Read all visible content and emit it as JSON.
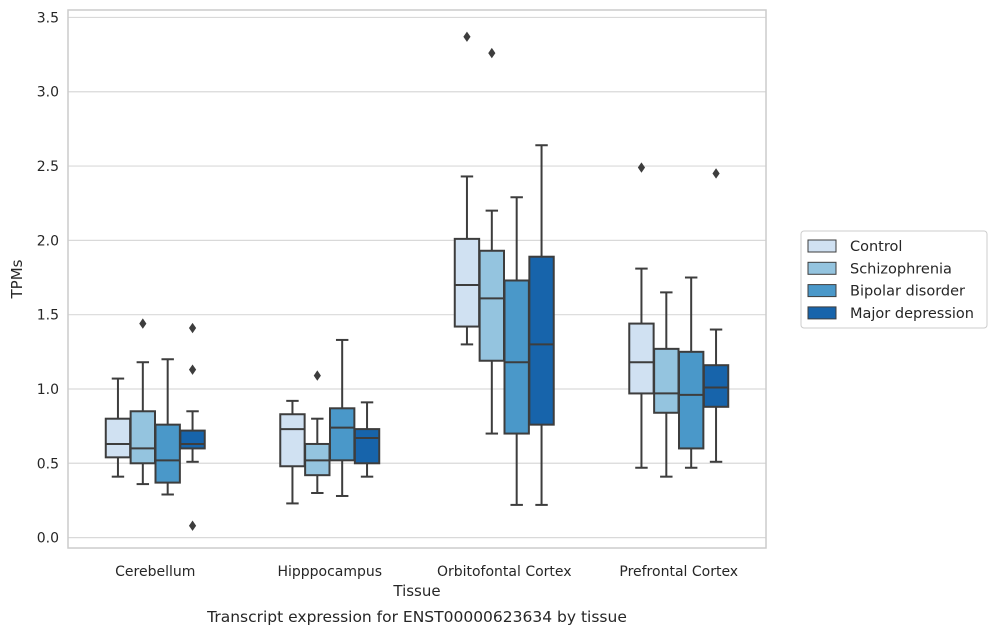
{
  "chart_data": {
    "type": "box",
    "xlabel": "Tissue",
    "ylabel": "TPMs",
    "caption": "Transcript expression for ENST00000623634 by tissue",
    "ylim": [
      -0.07,
      3.55
    ],
    "yticks": [
      "0.0",
      "0.5",
      "1.0",
      "1.5",
      "2.0",
      "2.5",
      "3.0",
      "3.5"
    ],
    "grid": "horizontal",
    "legend_position": "right",
    "categories": [
      "Cerebellum",
      "Hipppocampus",
      "Orbitofontal Cortex",
      "Prefrontal Cortex"
    ],
    "series": [
      {
        "name": "Control",
        "color": "#d0e1f2",
        "boxes": [
          {
            "whislo": 0.41,
            "q1": 0.54,
            "med": 0.63,
            "q3": 0.8,
            "whishi": 1.07,
            "fliers": []
          },
          {
            "whislo": 0.23,
            "q1": 0.48,
            "med": 0.73,
            "q3": 0.83,
            "whishi": 0.92,
            "fliers": []
          },
          {
            "whislo": 1.3,
            "q1": 1.42,
            "med": 1.7,
            "q3": 2.01,
            "whishi": 2.43,
            "fliers": [
              3.37
            ]
          },
          {
            "whislo": 0.47,
            "q1": 0.97,
            "med": 1.18,
            "q3": 1.44,
            "whishi": 1.81,
            "fliers": [
              2.49
            ]
          }
        ]
      },
      {
        "name": "Schizophrenia",
        "color": "#94c4df",
        "boxes": [
          {
            "whislo": 0.36,
            "q1": 0.5,
            "med": 0.6,
            "q3": 0.85,
            "whishi": 1.18,
            "fliers": [
              1.44
            ]
          },
          {
            "whislo": 0.3,
            "q1": 0.42,
            "med": 0.52,
            "q3": 0.63,
            "whishi": 0.8,
            "fliers": [
              1.09
            ]
          },
          {
            "whislo": 0.7,
            "q1": 1.19,
            "med": 1.61,
            "q3": 1.93,
            "whishi": 2.2,
            "fliers": [
              3.26
            ]
          },
          {
            "whislo": 0.41,
            "q1": 0.84,
            "med": 0.97,
            "q3": 1.27,
            "whishi": 1.65,
            "fliers": []
          }
        ]
      },
      {
        "name": "Bipolar disorder",
        "color": "#4a98c9",
        "boxes": [
          {
            "whislo": 0.29,
            "q1": 0.37,
            "med": 0.52,
            "q3": 0.76,
            "whishi": 1.2,
            "fliers": []
          },
          {
            "whislo": 0.28,
            "q1": 0.52,
            "med": 0.74,
            "q3": 0.87,
            "whishi": 1.33,
            "fliers": []
          },
          {
            "whislo": 0.22,
            "q1": 0.7,
            "med": 1.18,
            "q3": 1.73,
            "whishi": 2.29,
            "fliers": []
          },
          {
            "whislo": 0.47,
            "q1": 0.6,
            "med": 0.96,
            "q3": 1.25,
            "whishi": 1.75,
            "fliers": []
          }
        ]
      },
      {
        "name": "Major depression",
        "color": "#1764ab",
        "boxes": [
          {
            "whislo": 0.51,
            "q1": 0.6,
            "med": 0.63,
            "q3": 0.72,
            "whishi": 0.85,
            "fliers": [
              1.41,
              1.13,
              0.08
            ]
          },
          {
            "whislo": 0.41,
            "q1": 0.5,
            "med": 0.67,
            "q3": 0.73,
            "whishi": 0.91,
            "fliers": []
          },
          {
            "whislo": 0.22,
            "q1": 0.76,
            "med": 1.3,
            "q3": 1.89,
            "whishi": 2.64,
            "fliers": []
          },
          {
            "whislo": 0.51,
            "q1": 0.88,
            "med": 1.01,
            "q3": 1.16,
            "whishi": 1.4,
            "fliers": [
              2.45
            ]
          }
        ]
      }
    ]
  }
}
